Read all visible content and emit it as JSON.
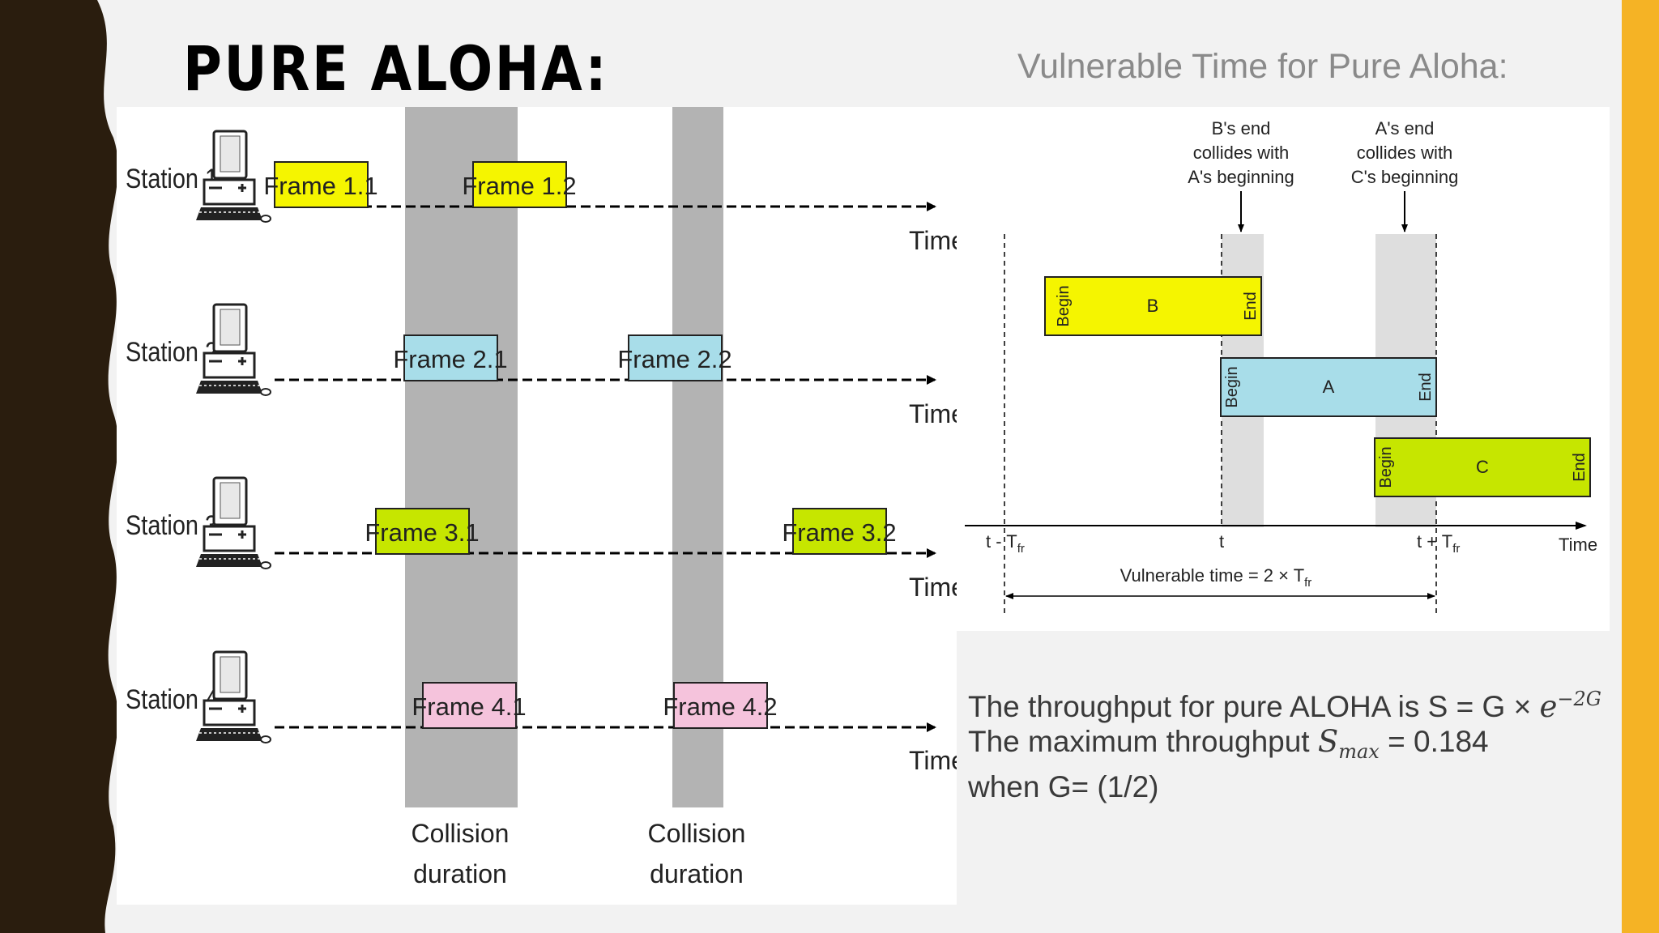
{
  "slide": {
    "title": "PURE ALOHA:",
    "subtitle": "Vulnerable Time for Pure Aloha:",
    "colors": {
      "yellow": "#f5f500",
      "cyan": "#a8dde9",
      "green": "#c6e600",
      "pink": "#f5c3dc",
      "gray": "#b3b3b3",
      "accent": "#f5b325",
      "dark": "#2a1d0e"
    }
  },
  "left_diagram": {
    "stations": [
      {
        "label": "Station 1",
        "time_label": "Time",
        "frames": [
          {
            "label": "Frame 1.1",
            "color": "yellow"
          },
          {
            "label": "Frame 1.2",
            "color": "yellow"
          }
        ]
      },
      {
        "label": "Station 2",
        "time_label": "Time",
        "frames": [
          {
            "label": "Frame 2.1",
            "color": "cyan"
          },
          {
            "label": "Frame 2.2",
            "color": "cyan"
          }
        ]
      },
      {
        "label": "Station 3",
        "time_label": "Time",
        "frames": [
          {
            "label": "Frame 3.1",
            "color": "green"
          },
          {
            "label": "Frame 3.2",
            "color": "green"
          }
        ]
      },
      {
        "label": "Station 4",
        "time_label": "Time",
        "frames": [
          {
            "label": "Frame 4.1",
            "color": "pink"
          },
          {
            "label": "Frame 4.2",
            "color": "pink"
          }
        ]
      }
    ],
    "collisions": [
      {
        "line1": "Collision",
        "line2": "duration"
      },
      {
        "line1": "Collision",
        "line2": "duration"
      }
    ]
  },
  "right_diagram": {
    "annotations": [
      {
        "lines": [
          "B's end",
          "collides with",
          "A's beginning"
        ]
      },
      {
        "lines": [
          "A's end",
          "collides with",
          "C's beginning"
        ]
      }
    ],
    "frames": [
      {
        "label": "B",
        "begin": "Begin",
        "end": "End",
        "color": "yellow"
      },
      {
        "label": "A",
        "begin": "Begin",
        "end": "End",
        "color": "cyan"
      },
      {
        "label": "C",
        "begin": "Begin",
        "end": "End",
        "color": "green"
      }
    ],
    "axis": {
      "tick_left": "t - T",
      "tick_left_sub": "fr",
      "tick_mid": "t",
      "tick_right": "t + T",
      "tick_right_sub": "fr",
      "time_label": "Time"
    },
    "vulnerable": {
      "text": "Vulnerable time = 2 × T",
      "sub": "fr"
    }
  },
  "throughput": {
    "line1_text": "The throughput for pure ALOHA is S = G ×",
    "line1_exp_base": "e",
    "line1_exp": "−2G",
    "line2_text": "The maximum throughput",
    "line2_sym": "S",
    "line2_sub": "max",
    "line2_value": "= 0.184",
    "line3_text": "when G= (1/2)"
  }
}
